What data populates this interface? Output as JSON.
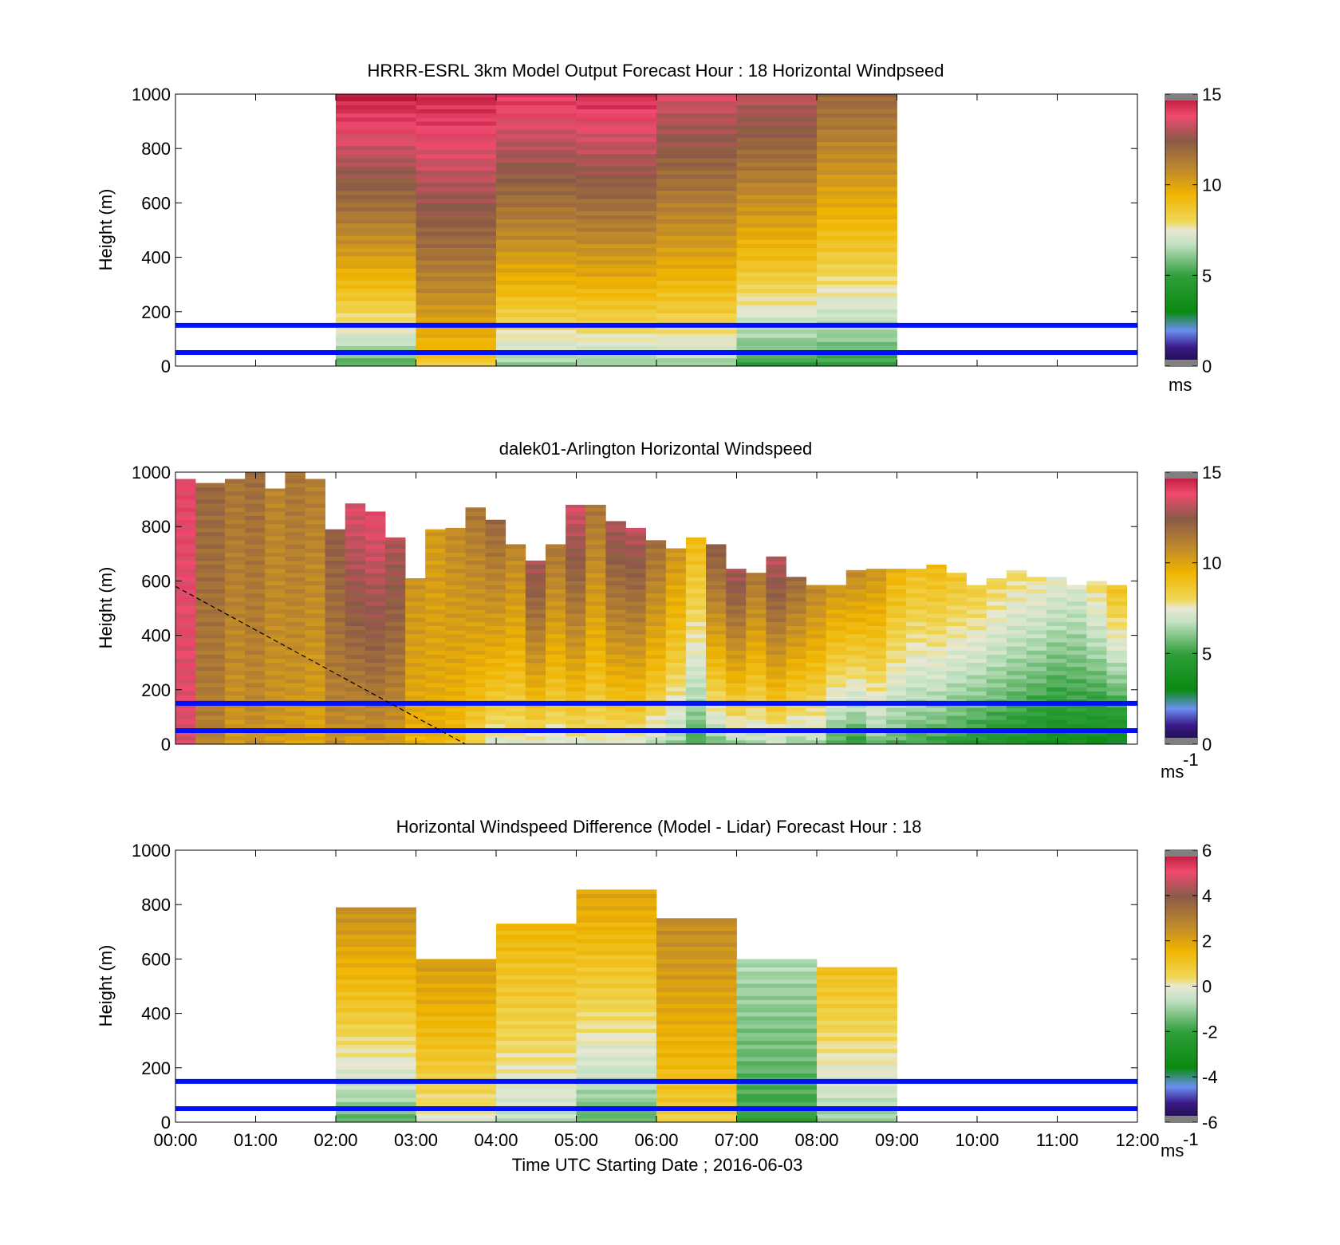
{
  "chart_data": [
    {
      "type": "heatmap",
      "title": "HRRR-ESRL 3km Model Output   Forecast Hour : 18 Horizontal Windpseed",
      "ylabel": "Height (m)",
      "yticks": [
        "0",
        "200",
        "400",
        "600",
        "800",
        "1000"
      ],
      "ylim": [
        0,
        1000
      ],
      "xlim": [
        "00:00",
        "12:00"
      ],
      "colorbar": {
        "min": 0,
        "max": 15,
        "ticks": [
          "0",
          "5",
          "10",
          "15"
        ],
        "unit": "ms",
        "unit_exp": ""
      },
      "reference_lines_m": [
        50,
        150
      ],
      "data_window": [
        "02:00",
        "09:00"
      ],
      "columns": [
        {
          "start": "02:00",
          "top_m": 1000,
          "surface": 5.0,
          "peak": 14.7
        },
        {
          "start": "03:00",
          "top_m": 1000,
          "surface": 8.3,
          "peak": 14.5
        },
        {
          "start": "04:00",
          "top_m": 1000,
          "surface": 5.8,
          "peak": 14.2
        },
        {
          "start": "05:00",
          "top_m": 1000,
          "surface": 5.8,
          "peak": 14.4
        },
        {
          "start": "06:00",
          "top_m": 1000,
          "surface": 6.0,
          "peak": 13.5
        },
        {
          "start": "07:00",
          "top_m": 1000,
          "surface": 4.5,
          "peak": 13.2
        },
        {
          "start": "08:00",
          "top_m": 1000,
          "surface": 4.6,
          "peak": 12.0
        }
      ]
    },
    {
      "type": "heatmap",
      "title": "dalek01-Arlington  Horizontal Windspeed",
      "ylabel": "Height (m)",
      "yticks": [
        "0",
        "200",
        "400",
        "600",
        "800",
        "1000"
      ],
      "ylim": [
        0,
        1000
      ],
      "xlim": [
        "00:00",
        "12:00"
      ],
      "colorbar": {
        "min": 0,
        "max": 15,
        "ticks": [
          "0",
          "5",
          "10",
          "15"
        ],
        "unit": "ms",
        "unit_exp": "-1"
      },
      "reference_lines_m": [
        50,
        150
      ],
      "dashed_line_m": [
        {
          "time": "00:00",
          "height": 580
        },
        {
          "time": "03:37",
          "height": 0
        }
      ],
      "columns": [
        {
          "start": "00:00",
          "top_m": 980,
          "surface": 13.5,
          "peak": 13.8
        },
        {
          "start": "00:15",
          "top_m": 960,
          "surface": 11.0,
          "peak": 12.0
        },
        {
          "start": "00:37",
          "top_m": 980,
          "surface": 10.2,
          "peak": 11.5
        },
        {
          "start": "00:52",
          "top_m": 1000,
          "surface": 10.5,
          "peak": 11.8
        },
        {
          "start": "01:07",
          "top_m": 940,
          "surface": 10.3,
          "peak": 11.0
        },
        {
          "start": "01:22",
          "top_m": 1000,
          "surface": 10.0,
          "peak": 11.5
        },
        {
          "start": "01:37",
          "top_m": 980,
          "surface": 9.8,
          "peak": 11.2
        },
        {
          "start": "01:52",
          "top_m": 790,
          "surface": 10.5,
          "peak": 12.3
        },
        {
          "start": "02:07",
          "top_m": 890,
          "surface": 10.0,
          "peak": 13.6
        },
        {
          "start": "02:22",
          "top_m": 860,
          "surface": 10.2,
          "peak": 13.8
        },
        {
          "start": "02:37",
          "top_m": 760,
          "surface": 10.0,
          "peak": 13.0
        },
        {
          "start": "02:52",
          "top_m": 610,
          "surface": 9.4,
          "peak": 10.5
        },
        {
          "start": "03:07",
          "top_m": 790,
          "surface": 9.5,
          "peak": 10.3
        },
        {
          "start": "03:22",
          "top_m": 800,
          "surface": 9.0,
          "peak": 10.8
        },
        {
          "start": "03:37",
          "top_m": 870,
          "surface": 8.0,
          "peak": 11.5
        },
        {
          "start": "03:52",
          "top_m": 830,
          "surface": 7.0,
          "peak": 12.0
        },
        {
          "start": "04:07",
          "top_m": 740,
          "surface": 7.2,
          "peak": 11.0
        },
        {
          "start": "04:22",
          "top_m": 680,
          "surface": 7.0,
          "peak": 13.0
        },
        {
          "start": "04:37",
          "top_m": 740,
          "surface": 7.0,
          "peak": 11.5
        },
        {
          "start": "04:52",
          "top_m": 880,
          "surface": 7.0,
          "peak": 13.5
        },
        {
          "start": "05:07",
          "top_m": 880,
          "surface": 7.2,
          "peak": 11.5
        },
        {
          "start": "05:22",
          "top_m": 820,
          "surface": 7.0,
          "peak": 13.0
        },
        {
          "start": "05:37",
          "top_m": 800,
          "surface": 7.0,
          "peak": 13.2
        },
        {
          "start": "05:52",
          "top_m": 750,
          "surface": 6.5,
          "peak": 11.8
        },
        {
          "start": "06:07",
          "top_m": 720,
          "surface": 6.0,
          "peak": 10.5
        },
        {
          "start": "06:22",
          "top_m": 760,
          "surface": 5.0,
          "peak": 9.2
        },
        {
          "start": "06:37",
          "top_m": 740,
          "surface": 5.5,
          "peak": 12.5
        },
        {
          "start": "06:52",
          "top_m": 650,
          "surface": 6.0,
          "peak": 13.0
        },
        {
          "start": "07:07",
          "top_m": 630,
          "surface": 6.2,
          "peak": 11.5
        },
        {
          "start": "07:22",
          "top_m": 690,
          "surface": 6.5,
          "peak": 13.2
        },
        {
          "start": "07:37",
          "top_m": 620,
          "surface": 6.0,
          "peak": 12.0
        },
        {
          "start": "07:52",
          "top_m": 590,
          "surface": 6.3,
          "peak": 11.0
        },
        {
          "start": "08:07",
          "top_m": 590,
          "surface": 5.0,
          "peak": 10.5
        },
        {
          "start": "08:22",
          "top_m": 640,
          "surface": 4.5,
          "peak": 10.8
        },
        {
          "start": "08:37",
          "top_m": 650,
          "surface": 5.5,
          "peak": 10.5
        },
        {
          "start": "08:52",
          "top_m": 650,
          "surface": 5.2,
          "peak": 9.5
        },
        {
          "start": "09:07",
          "top_m": 650,
          "surface": 5.0,
          "peak": 9.0
        },
        {
          "start": "09:22",
          "top_m": 660,
          "surface": 4.8,
          "peak": 9.2
        },
        {
          "start": "09:37",
          "top_m": 630,
          "surface": 4.5,
          "peak": 8.8
        },
        {
          "start": "09:52",
          "top_m": 590,
          "surface": 4.2,
          "peak": 8.5
        },
        {
          "start": "10:07",
          "top_m": 610,
          "surface": 4.0,
          "peak": 8.2
        },
        {
          "start": "10:22",
          "top_m": 640,
          "surface": 3.8,
          "peak": 8.0
        },
        {
          "start": "10:37",
          "top_m": 620,
          "surface": 3.5,
          "peak": 7.8
        },
        {
          "start": "10:52",
          "top_m": 620,
          "surface": 3.2,
          "peak": 7.5
        },
        {
          "start": "11:07",
          "top_m": 590,
          "surface": 3.5,
          "peak": 7.2
        },
        {
          "start": "11:22",
          "top_m": 600,
          "surface": 3.0,
          "peak": 8.0
        },
        {
          "start": "11:37",
          "top_m": 590,
          "surface": 2.8,
          "peak": 9.0
        }
      ]
    },
    {
      "type": "heatmap",
      "title": "Horizontal Windspeed Difference (Model - Lidar) Forecast Hour : 18",
      "xlabel": "Time UTC  Starting Date ; 2016-06-03",
      "ylabel": "Height (m)",
      "yticks": [
        "0",
        "200",
        "400",
        "600",
        "800",
        "1000"
      ],
      "xticks": [
        "00:00",
        "01:00",
        "02:00",
        "03:00",
        "04:00",
        "05:00",
        "06:00",
        "07:00",
        "08:00",
        "09:00",
        "10:00",
        "11:00",
        "12:00"
      ],
      "ylim": [
        0,
        1000
      ],
      "xlim": [
        "00:00",
        "12:00"
      ],
      "colorbar": {
        "min": -6,
        "max": 6,
        "ticks": [
          "-6",
          "-4",
          "-2",
          "0",
          "2",
          "4",
          "6"
        ],
        "unit": "ms",
        "unit_exp": "-1"
      },
      "reference_lines_m": [
        50,
        150
      ],
      "columns": [
        {
          "start": "02:00",
          "top_m": 790,
          "surface": -1.8,
          "peak": 2.5
        },
        {
          "start": "03:00",
          "top_m": 600,
          "surface": -0.3,
          "peak": 2.2
        },
        {
          "start": "04:00",
          "top_m": 730,
          "surface": -0.8,
          "peak": 1.5
        },
        {
          "start": "05:00",
          "top_m": 860,
          "surface": -1.8,
          "peak": 2.0
        },
        {
          "start": "06:00",
          "top_m": 750,
          "surface": 0.5,
          "peak": 2.6
        },
        {
          "start": "07:00",
          "top_m": 600,
          "surface": -2.2,
          "peak": -0.8
        },
        {
          "start": "08:00",
          "top_m": 570,
          "surface": -1.2,
          "peak": 1.2
        }
      ]
    }
  ]
}
